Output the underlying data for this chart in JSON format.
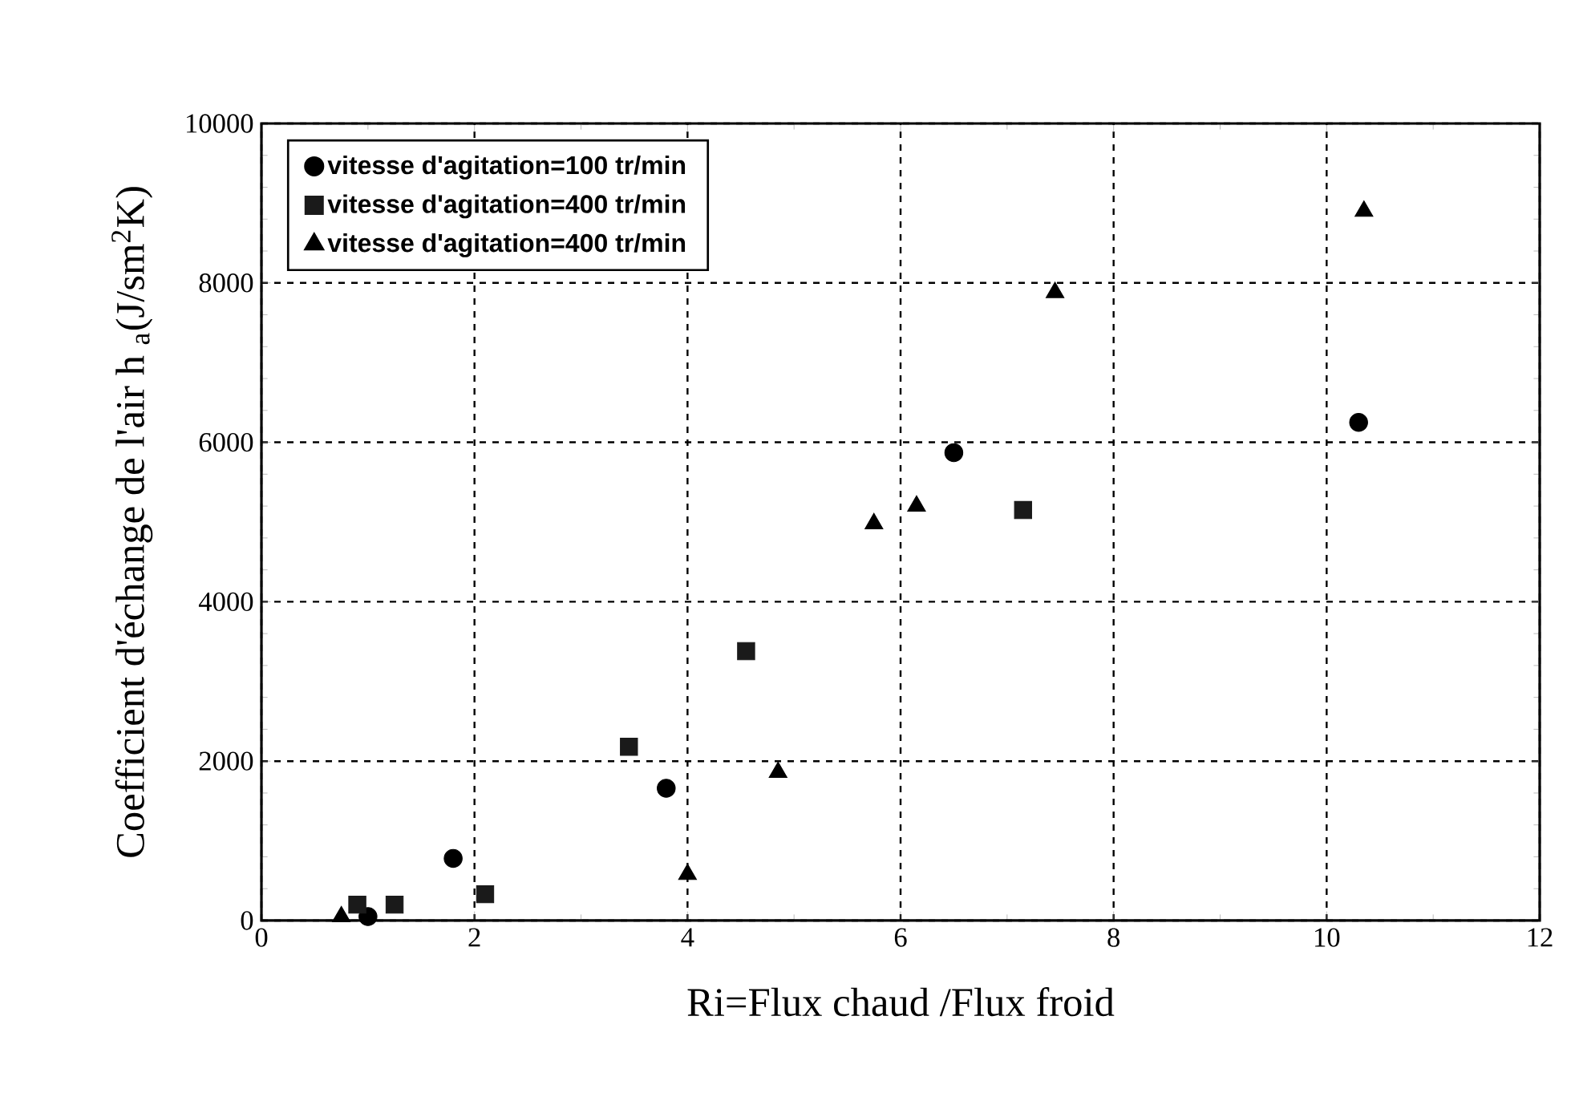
{
  "chart_data": {
    "type": "scatter",
    "xlabel": "Ri=Flux chaud /Flux froid",
    "ylabel": "Coefficient d'échange de l'air h $_{a}$(J/sm$^{2}$K)",
    "series": [
      {
        "name": "vitesse d'agitation=100 tr/min",
        "color": "#000000",
        "marker": "circle",
        "x": [
          1.0,
          1.8,
          3.8,
          6.5,
          10.3
        ],
        "values": [
          50,
          780,
          1660,
          5870,
          6250
        ]
      },
      {
        "name": "vitesse d'agitation=400 tr/min",
        "color": "#1a1a1a",
        "marker": "square",
        "x": [
          0.9,
          1.25,
          2.1,
          3.45,
          4.55,
          7.15
        ],
        "values": [
          200,
          200,
          330,
          2180,
          3380,
          5150
        ]
      },
      {
        "name": "vitesse d'agitation=400 tr/min",
        "color": "#000000",
        "marker": "triangle",
        "x": [
          0.75,
          4.0,
          4.85,
          5.75,
          6.15,
          7.45,
          10.35
        ],
        "values": [
          50,
          580,
          1860,
          4980,
          5200,
          7880,
          8900
        ]
      }
    ],
    "xlim": [
      0,
      12
    ],
    "xticks": [
      0,
      2,
      4,
      6,
      8,
      10,
      12
    ],
    "ylim": [
      0,
      10000
    ],
    "yticks": [
      0,
      2000,
      4000,
      6000,
      8000,
      10000
    ],
    "grid": true,
    "legend": "top left"
  }
}
